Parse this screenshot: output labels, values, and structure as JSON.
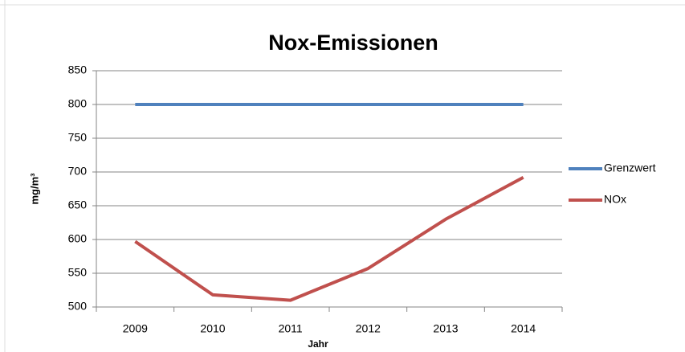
{
  "chart_data": {
    "type": "line",
    "title": "Nox-Emissionen",
    "y_label": "mg/m³",
    "x_label": "Jahr",
    "categories": [
      "2009",
      "2010",
      "2011",
      "2012",
      "2013",
      "2014"
    ],
    "series": [
      {
        "name": "Grenzwert",
        "color": "#4f81bd",
        "values": [
          800,
          800,
          800,
          800,
          800,
          800
        ]
      },
      {
        "name": "NOx",
        "color": "#c0504d",
        "values": [
          597,
          518,
          510,
          557,
          630,
          692
        ]
      }
    ],
    "ylim": [
      500,
      850
    ],
    "yticks": [
      500,
      550,
      600,
      650,
      700,
      750,
      800,
      850
    ],
    "grid": true,
    "legend": "right"
  }
}
